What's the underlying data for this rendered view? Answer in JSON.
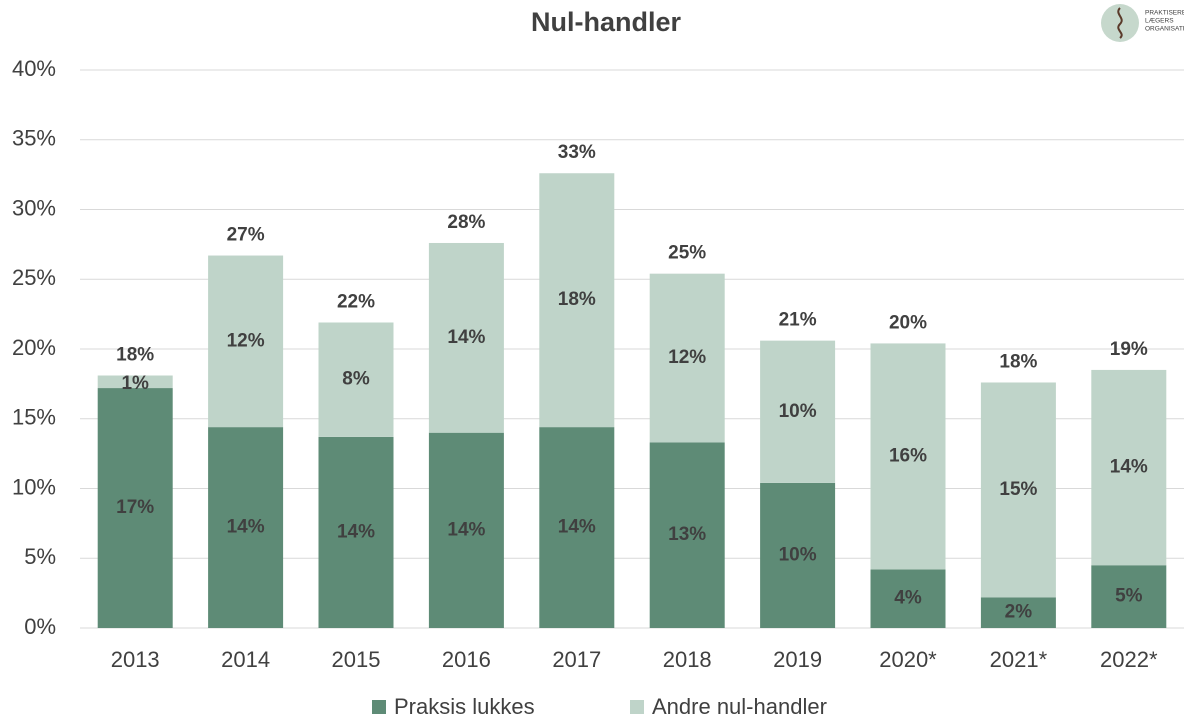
{
  "chart_data": {
    "type": "stacked_bar",
    "title": "Nul-handler",
    "logo": [
      "PRAKTISERENDE",
      "LÆGERS",
      "ORGANISATION"
    ],
    "categories": [
      "2013",
      "2014",
      "2015",
      "2016",
      "2017",
      "2018",
      "2019",
      "2020*",
      "2021*",
      "2022*"
    ],
    "series": [
      {
        "name": "Praksis lukkes",
        "color": "#5e8b76",
        "values": [
          17.2,
          14.4,
          13.7,
          14.0,
          14.4,
          13.3,
          10.4,
          4.2,
          2.2,
          4.5
        ],
        "value_labels": [
          "17%",
          "14%",
          "14%",
          "14%",
          "14%",
          "13%",
          "10%",
          "4%",
          "2%",
          "5%"
        ]
      },
      {
        "name": "Andre nul-handler",
        "color": "#bfd4c9",
        "values": [
          0.9,
          12.3,
          8.2,
          13.6,
          18.2,
          12.1,
          10.2,
          16.2,
          15.4,
          14.0
        ],
        "value_labels": [
          "1%",
          "12%",
          "8%",
          "14%",
          "18%",
          "12%",
          "10%",
          "16%",
          "15%",
          "14%"
        ]
      }
    ],
    "total_labels": [
      "18%",
      "27%",
      "22%",
      "28%",
      "33%",
      "25%",
      "21%",
      "20%",
      "18%",
      "19%"
    ],
    "ylim": [
      0,
      40
    ],
    "yticks": [
      {
        "value": 0,
        "label": "0%"
      },
      {
        "value": 5,
        "label": "5%"
      },
      {
        "value": 10,
        "label": "10%"
      },
      {
        "value": 15,
        "label": "15%"
      },
      {
        "value": 20,
        "label": "20%"
      },
      {
        "value": 25,
        "label": "25%"
      },
      {
        "value": 30,
        "label": "30%"
      },
      {
        "value": 35,
        "label": "35%"
      },
      {
        "value": 40,
        "label": "40%"
      }
    ],
    "grid": true
  }
}
